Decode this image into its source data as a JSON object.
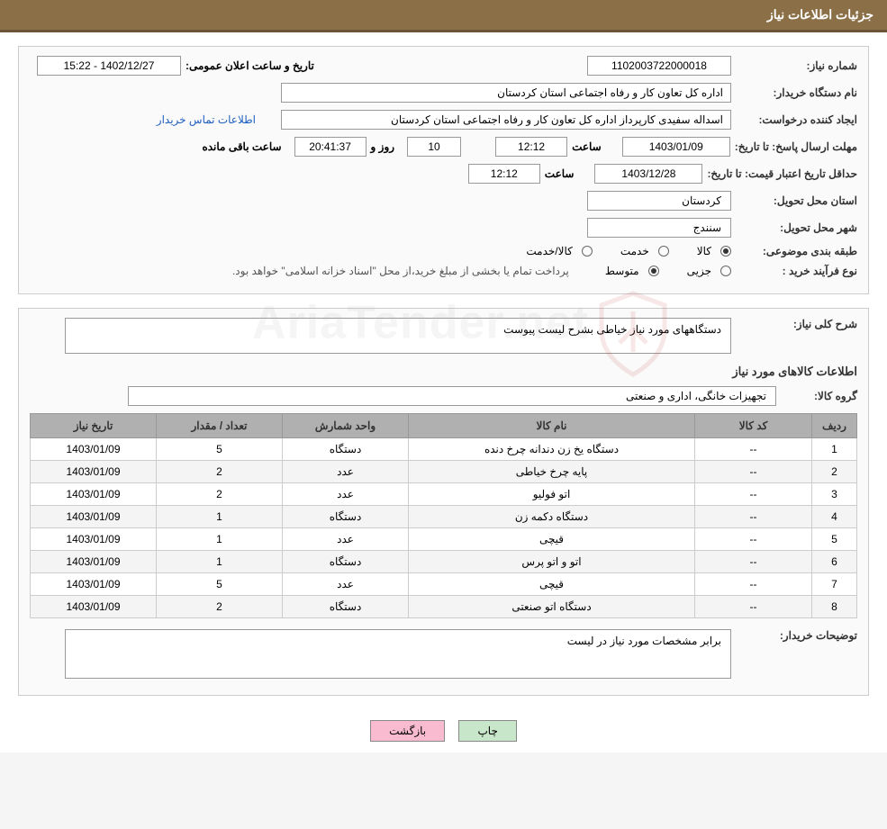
{
  "header": {
    "title": "جزئیات اطلاعات نیاز"
  },
  "fields": {
    "need_number_label": "شماره نیاز:",
    "need_number": "1102003722000018",
    "announce_label": "تاریخ و ساعت اعلان عمومی:",
    "announce_value": "1402/12/27 - 15:22",
    "buyer_label": "نام دستگاه خریدار:",
    "buyer_value": "اداره کل تعاون  کار و رفاه اجتماعی استان کردستان",
    "requester_label": "ایجاد کننده درخواست:",
    "requester_value": "اسداله سفیدی کارپرداز اداره کل تعاون  کار و رفاه اجتماعی استان کردستان",
    "contact_link": "اطلاعات تماس خریدار",
    "reply_deadline_label": "مهلت ارسال پاسخ:  تا تاریخ:",
    "reply_date": "1403/01/09",
    "time_label": "ساعت",
    "reply_time": "12:12",
    "days_value": "10",
    "days_label": "روز و",
    "hours_value": "20:41:37",
    "hours_label": "ساعت باقی مانده",
    "price_validity_label": "حداقل تاریخ اعتبار قیمت:  تا تاریخ:",
    "price_validity_date": "1403/12/28",
    "price_validity_time": "12:12",
    "delivery_province_label": "استان محل تحویل:",
    "delivery_province": "کردستان",
    "delivery_city_label": "شهر محل تحویل:",
    "delivery_city": "سنندج",
    "subject_class_label": "طبقه بندی موضوعی:",
    "subject_opts": {
      "goods": "کالا",
      "service": "خدمت",
      "goods_service": "کالا/خدمت"
    },
    "purchase_type_label": "نوع فرآیند خرید :",
    "purchase_opts": {
      "partial": "جزیی",
      "medium": "متوسط"
    },
    "purchase_note": "پرداخت تمام یا بخشی از مبلغ خرید،از محل \"اسناد خزانه اسلامی\" خواهد بود."
  },
  "detail": {
    "need_desc_label": "شرح کلی نیاز:",
    "need_desc": "دستگاههای مورد نیاز خیاطی بشرح لیست پیوست",
    "items_title": "اطلاعات کالاهای مورد نیاز",
    "group_label": "گروه کالا:",
    "group_value": "تجهیزات خانگی، اداری و صنعتی",
    "table": {
      "columns": [
        "ردیف",
        "کد کالا",
        "نام کالا",
        "واحد شمارش",
        "تعداد / مقدار",
        "تاریخ نیاز"
      ],
      "col_widths": [
        "50px",
        "130px",
        "auto",
        "140px",
        "140px",
        "140px"
      ],
      "rows": [
        [
          "1",
          "--",
          "دستگاه یخ زن دندانه چرخ دنده",
          "دستگاه",
          "5",
          "1403/01/09"
        ],
        [
          "2",
          "--",
          "پایه چرخ خیاطی",
          "عدد",
          "2",
          "1403/01/09"
        ],
        [
          "3",
          "--",
          "اتو فولیو",
          "عدد",
          "2",
          "1403/01/09"
        ],
        [
          "4",
          "--",
          "دستگاه دکمه زن",
          "دستگاه",
          "1",
          "1403/01/09"
        ],
        [
          "5",
          "--",
          "قیچی",
          "عدد",
          "1",
          "1403/01/09"
        ],
        [
          "6",
          "--",
          "اتو و اتو پرس",
          "دستگاه",
          "1",
          "1403/01/09"
        ],
        [
          "7",
          "--",
          "قیچی",
          "عدد",
          "5",
          "1403/01/09"
        ],
        [
          "8",
          "--",
          "دستگاه اتو صنعتی",
          "دستگاه",
          "2",
          "1403/01/09"
        ]
      ]
    },
    "buyer_notes_label": "توضیحات خریدار:",
    "buyer_notes": "برابر مشخصات مورد نیاز در لیست"
  },
  "buttons": {
    "print": "چاپ",
    "back": "بازگشت"
  },
  "watermark": {
    "text": "AriaTender.net"
  },
  "colors": {
    "header_bg": "#8b6f47",
    "header_border": "#6b5437",
    "table_header_bg": "#b0b0b0",
    "btn_print_bg": "#c8e6c9",
    "btn_back_bg": "#f8bbd0",
    "link_color": "#2060c0"
  }
}
